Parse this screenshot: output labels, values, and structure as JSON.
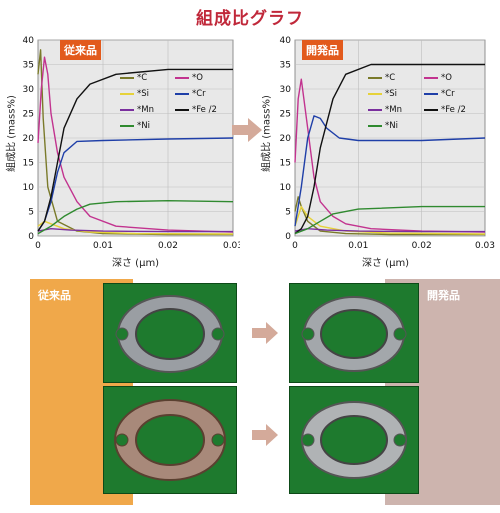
{
  "page": {
    "title": "組成比グラフ"
  },
  "colors": {
    "C": "#7a7a2a",
    "O": "#c2338f",
    "Si": "#e6d23a",
    "Cr": "#1f3fa8",
    "Mn": "#7a2f9e",
    "Fe": "#111111",
    "Ni": "#2f8a2f",
    "badge": "#e25a1c",
    "arrow": "#d4aa9a",
    "orange": "#f0a84a",
    "taupe": "#cdb4ae",
    "title": "#c0283a"
  },
  "chart_data": [
    {
      "type": "line",
      "badge": "従来品",
      "ylabel": "組成比 (mass%)",
      "xlabel": "深さ (μm)",
      "xlim": [
        0,
        0.03
      ],
      "ylim": [
        0,
        40
      ],
      "xticks": [
        "0",
        "0.01",
        "0.02",
        "0.03"
      ],
      "yticks": [
        "0",
        "5",
        "10",
        "15",
        "20",
        "25",
        "30",
        "35",
        "40"
      ],
      "grid": true,
      "legend": [
        "*C",
        "*O",
        "*Si",
        "*Cr",
        "*Mn",
        "*Fe /2",
        "*Ni"
      ],
      "series": [
        {
          "name": "*C",
          "x": [
            0,
            0.0004,
            0.0008,
            0.0015,
            0.003,
            0.006,
            0.01,
            0.02,
            0.03
          ],
          "values": [
            33,
            38,
            24,
            10,
            3,
            1,
            0.5,
            0.3,
            0.3
          ]
        },
        {
          "name": "*O",
          "x": [
            0,
            0.0005,
            0.001,
            0.0015,
            0.002,
            0.003,
            0.004,
            0.006,
            0.008,
            0.012,
            0.02,
            0.03
          ],
          "values": [
            19,
            30,
            36.5,
            33,
            25,
            17,
            12,
            7,
            4,
            2,
            1.2,
            0.8
          ]
        },
        {
          "name": "*Si",
          "x": [
            0,
            0.001,
            0.002,
            0.004,
            0.008,
            0.015,
            0.03
          ],
          "values": [
            2,
            3,
            2.5,
            1.5,
            0.8,
            0.5,
            0.4
          ]
        },
        {
          "name": "*Cr",
          "x": [
            0,
            0.001,
            0.002,
            0.003,
            0.004,
            0.006,
            0.01,
            0.02,
            0.03
          ],
          "values": [
            1,
            3,
            7,
            13,
            17,
            19.3,
            19.5,
            19.8,
            20
          ]
        },
        {
          "name": "*Mn",
          "x": [
            0,
            0.002,
            0.005,
            0.01,
            0.02,
            0.03
          ],
          "values": [
            1,
            1.5,
            1.2,
            1.0,
            0.9,
            0.9
          ]
        },
        {
          "name": "*Fe /2",
          "x": [
            0,
            0.001,
            0.002,
            0.003,
            0.004,
            0.006,
            0.008,
            0.012,
            0.02,
            0.03
          ],
          "values": [
            1,
            3,
            8,
            15,
            22,
            28,
            31,
            33,
            34,
            34
          ]
        },
        {
          "name": "*Ni",
          "x": [
            0,
            0.002,
            0.004,
            0.006,
            0.008,
            0.012,
            0.02,
            0.03
          ],
          "values": [
            0.5,
            2,
            4,
            5.5,
            6.5,
            7,
            7.2,
            7
          ]
        }
      ]
    },
    {
      "type": "line",
      "badge": "開発品",
      "ylabel": "組成比 (mass%)",
      "xlabel": "深さ (μm)",
      "xlim": [
        0,
        0.03
      ],
      "ylim": [
        0,
        40
      ],
      "xticks": [
        "0",
        "0.01",
        "0.02",
        "0.03"
      ],
      "yticks": [
        "0",
        "5",
        "10",
        "15",
        "20",
        "25",
        "30",
        "35",
        "40"
      ],
      "grid": true,
      "legend": [
        "*C",
        "*O",
        "*Si",
        "*Cr",
        "*Mn",
        "*Fe /2",
        "*Ni"
      ],
      "series": [
        {
          "name": "*C",
          "x": [
            0,
            0.0005,
            0.001,
            0.002,
            0.004,
            0.008,
            0.015,
            0.03
          ],
          "values": [
            5,
            8,
            6,
            3,
            1,
            0.5,
            0.3,
            0.3
          ]
        },
        {
          "name": "*O",
          "x": [
            0,
            0.0005,
            0.001,
            0.002,
            0.003,
            0.004,
            0.006,
            0.008,
            0.012,
            0.02,
            0.03
          ],
          "values": [
            15,
            28,
            32,
            22,
            12,
            7,
            4,
            2.5,
            1.5,
            1,
            0.8
          ]
        },
        {
          "name": "*Si",
          "x": [
            0,
            0.001,
            0.002,
            0.004,
            0.008,
            0.015,
            0.03
          ],
          "values": [
            2,
            6,
            4,
            2,
            1,
            0.6,
            0.4
          ]
        },
        {
          "name": "*Cr",
          "x": [
            0,
            0.001,
            0.002,
            0.003,
            0.004,
            0.005,
            0.007,
            0.01,
            0.02,
            0.03
          ],
          "values": [
            2,
            10,
            20,
            24.5,
            24,
            22,
            20,
            19.5,
            19.5,
            20
          ]
        },
        {
          "name": "*Mn",
          "x": [
            0,
            0.002,
            0.005,
            0.01,
            0.02,
            0.03
          ],
          "values": [
            1,
            1.5,
            1.2,
            1,
            0.9,
            0.9
          ]
        },
        {
          "name": "*Fe /2",
          "x": [
            0,
            0.001,
            0.002,
            0.003,
            0.004,
            0.006,
            0.008,
            0.012,
            0.02,
            0.03
          ],
          "values": [
            0.5,
            1.5,
            4,
            10,
            18,
            28,
            33,
            35,
            35,
            35
          ]
        },
        {
          "name": "*Ni",
          "x": [
            0,
            0.002,
            0.004,
            0.006,
            0.01,
            0.02,
            0.03
          ],
          "values": [
            0.5,
            1.5,
            3,
            4.5,
            5.5,
            6,
            6
          ]
        }
      ]
    }
  ],
  "photos": {
    "left_label": "従来品",
    "right_label": "開発品"
  }
}
